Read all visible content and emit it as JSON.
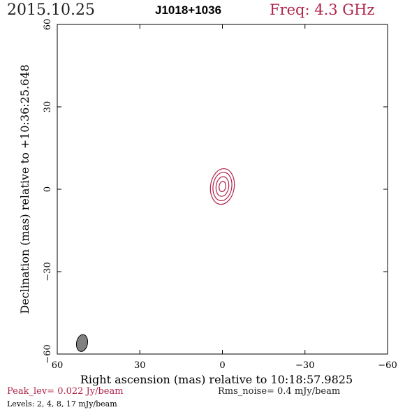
{
  "header": {
    "date": "2015.10.25",
    "source": "J1018+1036",
    "freq": "Freq: 4.3 GHz"
  },
  "footer": {
    "peak": "Peak_lev=  0.022 Jy/beam",
    "rms": "Rms_noise=  0.4 mJy/beam",
    "levels": "Levels:  2,  4,  8,  17 mJy/beam"
  },
  "colors": {
    "accent": "#b0244a",
    "beam_fill": "#808080"
  },
  "chart_data": {
    "type": "contour",
    "xlabel": "Right ascension (mas) relative to 10:18:57.9825",
    "ylabel": "Declination (mas) relative to +10:36:25.648",
    "xlim": [
      60,
      -60
    ],
    "ylim": [
      -60,
      60
    ],
    "xticks": [
      60,
      30,
      0,
      -30,
      -60
    ],
    "yticks": [
      60,
      30,
      0,
      -30,
      -60
    ],
    "xtick_labels": [
      "60",
      "30",
      "0",
      "−30",
      "−60"
    ],
    "ytick_labels": [
      "60",
      "30",
      "0",
      "−30",
      "−60"
    ],
    "contour_levels_mjy": [
      2,
      4,
      8,
      17
    ],
    "contours": [
      {
        "level": 2,
        "cx": 0,
        "cy": 1,
        "rx": 4.3,
        "ry": 6.5
      },
      {
        "level": 4,
        "cx": 0,
        "cy": 1,
        "rx": 3.4,
        "ry": 5.2
      },
      {
        "level": 8,
        "cx": 0,
        "cy": 1,
        "rx": 2.3,
        "ry": 3.6
      },
      {
        "level": 17,
        "cx": 0,
        "cy": 1,
        "rx": 1.2,
        "ry": 1.9
      }
    ],
    "beam": {
      "cx": 51,
      "cy": -56,
      "major": 6.2,
      "minor": 4.0,
      "pa_deg": 10
    }
  }
}
